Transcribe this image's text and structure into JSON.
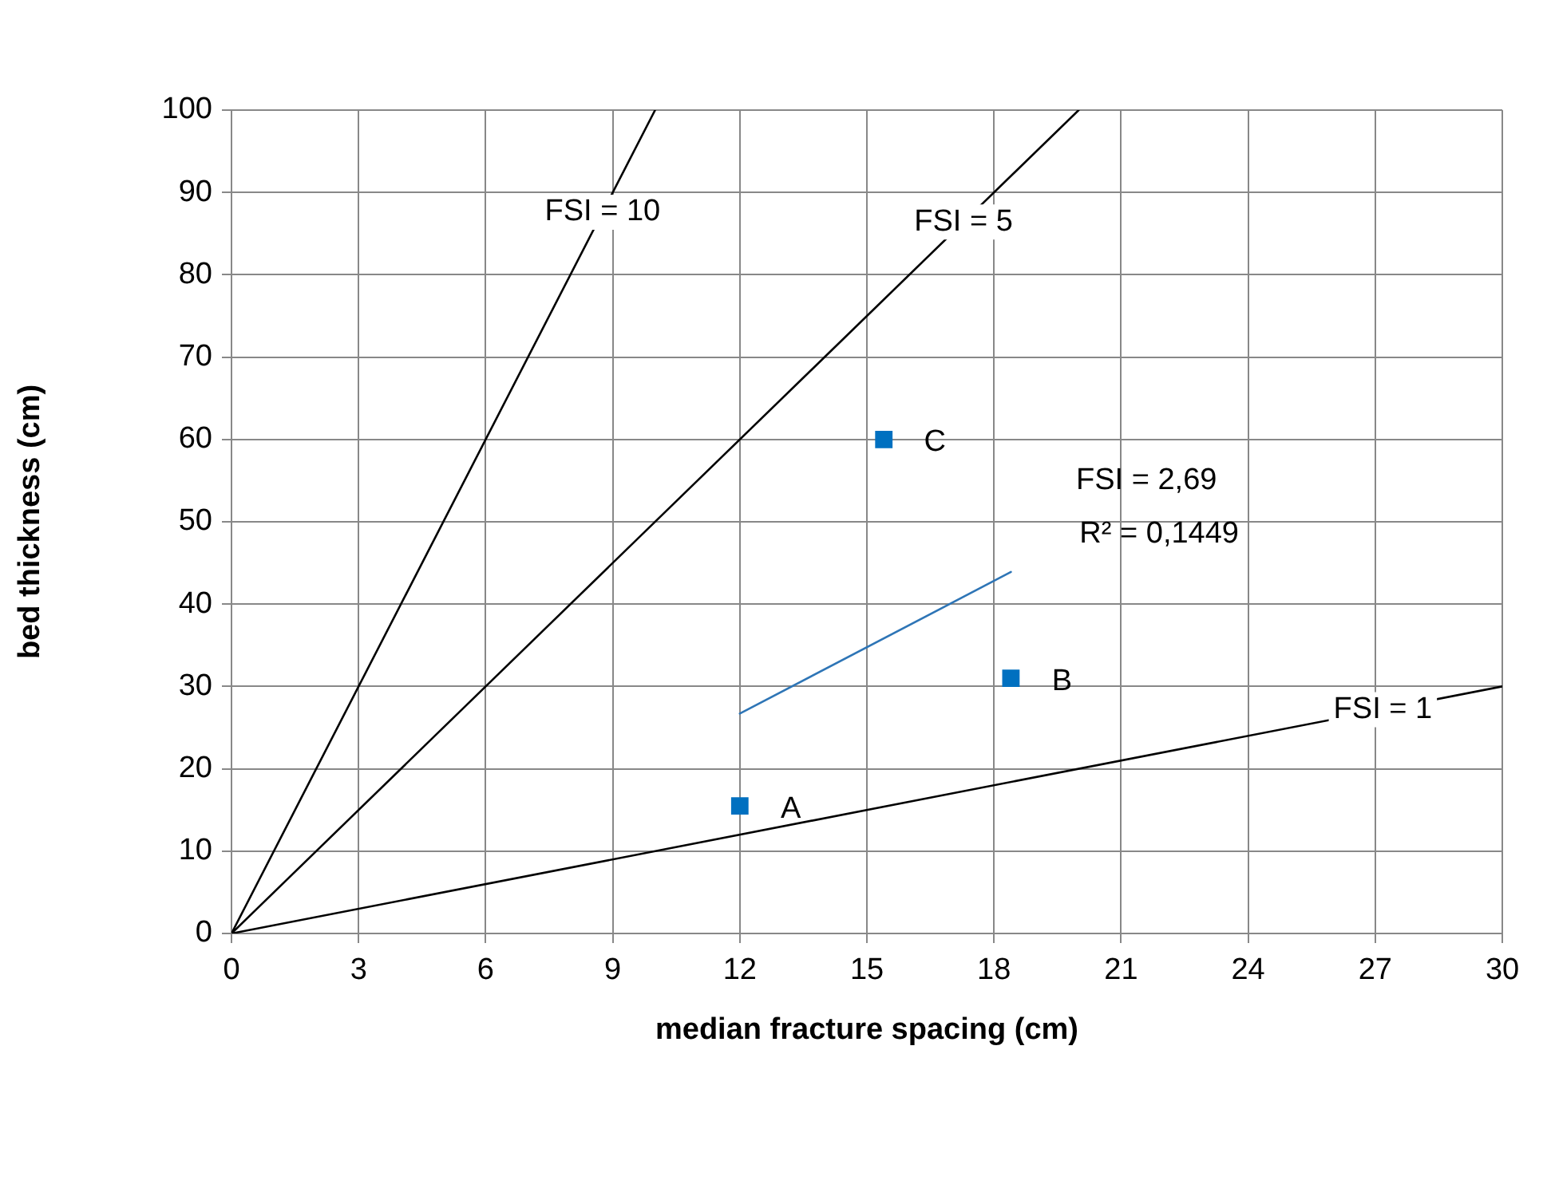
{
  "chart_data": {
    "type": "scatter",
    "xlabel": "median fracture spacing (cm)",
    "ylabel": "bed thickness (cm)",
    "xlim": [
      0,
      30
    ],
    "xticks": [
      0,
      3,
      6,
      9,
      12,
      15,
      18,
      21,
      24,
      27,
      30
    ],
    "ylim": [
      0,
      100
    ],
    "yticks": [
      0,
      10,
      20,
      30,
      40,
      50,
      60,
      70,
      80,
      90,
      100
    ],
    "grid": true,
    "legend": false,
    "series": [
      {
        "type": "line",
        "name": "FSI = 10",
        "color": "#000000",
        "marker": "none",
        "x": [
          0,
          10
        ],
        "values": [
          0,
          100
        ]
      },
      {
        "type": "line",
        "name": "FSI = 5",
        "color": "#000000",
        "marker": "none",
        "x": [
          0,
          20
        ],
        "values": [
          0,
          100
        ]
      },
      {
        "type": "line",
        "name": "FSI = 1",
        "color": "#000000",
        "marker": "none",
        "x": [
          0,
          30
        ],
        "values": [
          0,
          30
        ]
      },
      {
        "type": "line",
        "color": "#2e75b6",
        "marker": "none",
        "x": [
          12,
          18.4
        ],
        "values": [
          26.7,
          43.9
        ]
      },
      {
        "type": "scatter",
        "color": "#0070c0",
        "marker": "square",
        "x": [
          12,
          18.4,
          15.4
        ],
        "values": [
          15.5,
          31,
          60
        ]
      }
    ],
    "annotations": [
      "FSI = 2,69",
      "R² = 0,1449",
      {
        "text": "A",
        "x": 12,
        "y": 15.5
      },
      {
        "text": "B",
        "x": 18.4,
        "y": 31
      },
      {
        "text": "C",
        "x": 15.4,
        "y": 60
      }
    ]
  }
}
